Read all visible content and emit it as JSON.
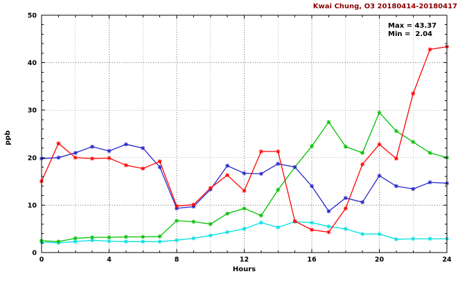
{
  "chart_data": {
    "type": "line",
    "title": "Kwai Chung, O3 20180414-20180417",
    "xlabel": "Hours",
    "ylabel": "ppb",
    "xlim": [
      0,
      24
    ],
    "ylim": [
      0,
      50
    ],
    "xticks": [
      0,
      4,
      8,
      12,
      16,
      20,
      24
    ],
    "yticks": [
      0,
      10,
      20,
      30,
      40,
      50
    ],
    "x_grid_interval": 2,
    "y_grid_interval": 10,
    "grid": true,
    "annotations": {
      "max": "Max = 43.37",
      "min": "Min =  2.04"
    },
    "colors": {
      "grid": "#606060",
      "axis": "#000000",
      "title": "#8b0000"
    },
    "x": [
      0,
      1,
      2,
      3,
      4,
      5,
      6,
      7,
      8,
      9,
      10,
      11,
      12,
      13,
      14,
      15,
      16,
      17,
      18,
      19,
      20,
      21,
      22,
      23,
      24
    ],
    "series": [
      {
        "name": "series-cyan",
        "color": "#00e0e0",
        "values": [
          2.2,
          2.04,
          2.3,
          2.6,
          2.4,
          2.3,
          2.3,
          2.3,
          2.6,
          3.0,
          3.6,
          4.3,
          5.0,
          6.3,
          5.3,
          6.5,
          6.3,
          5.5,
          5.0,
          3.9,
          3.9,
          2.8,
          2.9,
          2.9,
          2.9
        ]
      },
      {
        "name": "series-green",
        "color": "#00c000",
        "values": [
          2.5,
          2.3,
          3.0,
          3.2,
          3.2,
          3.3,
          3.3,
          3.4,
          6.7,
          6.5,
          6.0,
          8.2,
          9.3,
          7.8,
          13.2,
          18.0,
          22.4,
          27.5,
          22.3,
          21.0,
          29.5,
          25.6,
          23.3,
          21.0,
          20.0
        ]
      },
      {
        "name": "series-blue",
        "color": "#2525cd",
        "values": [
          19.8,
          20.0,
          21.0,
          22.3,
          21.4,
          22.8,
          22.0,
          18.0,
          9.3,
          9.7,
          13.3,
          18.3,
          16.7,
          16.6,
          18.7,
          18.0,
          14.0,
          8.7,
          11.5,
          10.6,
          16.2,
          14.0,
          13.4,
          14.8,
          14.6
        ]
      },
      {
        "name": "series-red",
        "color": "#ff0000",
        "values": [
          15.0,
          23.0,
          20.0,
          19.8,
          19.9,
          18.4,
          17.7,
          19.2,
          9.8,
          10.1,
          13.6,
          16.3,
          13.0,
          21.3,
          21.3,
          6.6,
          4.8,
          4.3,
          9.3,
          18.6,
          22.8,
          19.8,
          33.5,
          42.8,
          43.37
        ]
      }
    ]
  }
}
